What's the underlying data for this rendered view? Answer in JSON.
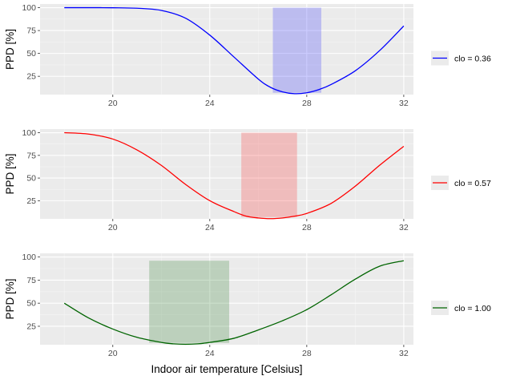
{
  "chart_data": [
    {
      "type": "line",
      "ylabel": "PPD [%]",
      "xlabel": "",
      "xlim": [
        17,
        32.4
      ],
      "ylim": [
        5,
        104
      ],
      "x_ticks": [
        20,
        24,
        28,
        32
      ],
      "y_ticks": [
        25,
        50,
        75,
        100
      ],
      "grid": true,
      "legend_position": "right",
      "series": [
        {
          "name": "clo = 0.36",
          "color": "#0000ff",
          "x": [
            18,
            19,
            20,
            21,
            22,
            23,
            24,
            25,
            26,
            26.5,
            27,
            27.5,
            28,
            28.5,
            29,
            30,
            31,
            32
          ],
          "y": [
            100,
            100,
            99.9,
            99.4,
            97,
            88.5,
            70,
            46,
            22,
            13,
            8,
            6,
            7,
            10.5,
            16,
            31,
            53,
            80
          ]
        }
      ],
      "comfort_band": {
        "x_range": [
          26.6,
          28.6
        ],
        "y_range": [
          7,
          100
        ],
        "color": "#0000ff"
      }
    },
    {
      "type": "line",
      "ylabel": "PPD [%]",
      "xlabel": "",
      "xlim": [
        17,
        32.4
      ],
      "ylim": [
        5,
        104
      ],
      "x_ticks": [
        20,
        24,
        28,
        32
      ],
      "y_ticks": [
        25,
        50,
        75,
        100
      ],
      "grid": true,
      "legend_position": "right",
      "series": [
        {
          "name": "clo = 0.57",
          "color": "#ff0000",
          "x": [
            18,
            19,
            20,
            21,
            22,
            23,
            24,
            25,
            25.5,
            26,
            26.5,
            27,
            27.5,
            28,
            29,
            30,
            31,
            32
          ],
          "y": [
            100,
            98.5,
            93,
            81,
            64,
            43,
            25,
            13,
            8,
            6,
            5.2,
            6,
            8,
            11,
            22,
            41,
            64,
            85
          ]
        }
      ],
      "comfort_band": {
        "x_range": [
          25.3,
          27.6
        ],
        "y_range": [
          7,
          100
        ],
        "color": "#ff0000"
      }
    },
    {
      "type": "line",
      "ylabel": "PPD [%]",
      "xlabel": "Indoor air temperature [Celsius]",
      "xlim": [
        17,
        32.4
      ],
      "ylim": [
        5,
        104
      ],
      "x_ticks": [
        20,
        24,
        28,
        32
      ],
      "y_ticks": [
        25,
        50,
        75,
        100
      ],
      "grid": true,
      "legend_position": "right",
      "series": [
        {
          "name": "clo = 1.00",
          "color": "#006400",
          "x": [
            18,
            19,
            20,
            21,
            22,
            22.5,
            23,
            23.5,
            24,
            25,
            26,
            27,
            28,
            29,
            30,
            31,
            32
          ],
          "y": [
            50,
            34,
            22,
            13,
            7.5,
            6,
            5.5,
            6,
            7.5,
            12,
            21,
            31,
            43,
            59,
            76,
            90,
            96
          ]
        }
      ],
      "comfort_band": {
        "x_range": [
          21.5,
          24.8
        ],
        "y_range": [
          7,
          96
        ],
        "color": "#006400"
      }
    }
  ]
}
